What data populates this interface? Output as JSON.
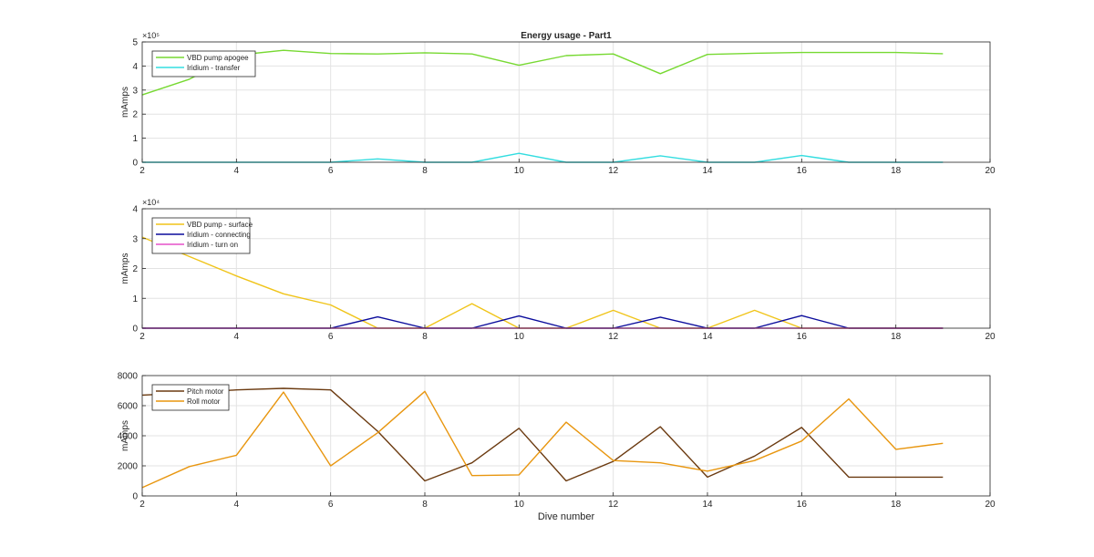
{
  "figure": {
    "title": "Energy usage - Part1",
    "xlabel": "Dive number"
  },
  "chart_data": [
    {
      "type": "line",
      "title": "Energy usage - Part1",
      "xlabel": "",
      "ylabel": "mAmps",
      "xlim": [
        2,
        20
      ],
      "ylim": [
        0,
        500000
      ],
      "x_ticks": [
        "2",
        "4",
        "6",
        "8",
        "10",
        "12",
        "14",
        "16",
        "18",
        "20"
      ],
      "y_ticks": [
        "0",
        "1",
        "2",
        "3",
        "4",
        "5"
      ],
      "y_exponent": "×10⁵",
      "grid": true,
      "legend_position": "top-left",
      "x": [
        2,
        3,
        4,
        5,
        6,
        7,
        8,
        9,
        10,
        11,
        12,
        13,
        14,
        15,
        16,
        17,
        18,
        19
      ],
      "series": [
        {
          "name": "VBD pump apogee",
          "color": "#77d932",
          "values": [
            280000,
            345000,
            445000,
            465000,
            452000,
            450000,
            455000,
            450000,
            403000,
            443000,
            450000,
            368000,
            448000,
            453000,
            456000,
            456000,
            456000,
            451000
          ]
        },
        {
          "name": "Iridium - transfer",
          "color": "#33dde0",
          "values": [
            0,
            0,
            0,
            0,
            0,
            14000,
            0,
            0,
            37000,
            0,
            0,
            27000,
            0,
            0,
            28000,
            0,
            0,
            0
          ]
        }
      ]
    },
    {
      "type": "line",
      "title": "",
      "xlabel": "",
      "ylabel": "mAmps",
      "xlim": [
        2,
        20
      ],
      "ylim": [
        0,
        40000
      ],
      "x_ticks": [
        "2",
        "4",
        "6",
        "8",
        "10",
        "12",
        "14",
        "16",
        "18",
        "20"
      ],
      "y_ticks": [
        "0",
        "1",
        "2",
        "3",
        "4"
      ],
      "y_exponent": "×10⁴",
      "grid": true,
      "legend_position": "top-left",
      "x": [
        2,
        3,
        4,
        5,
        6,
        7,
        8,
        9,
        10,
        11,
        12,
        13,
        14,
        15,
        16,
        17,
        18,
        19
      ],
      "series": [
        {
          "name": "VBD pump - surface",
          "color": "#f0c419",
          "values": [
            30500,
            24000,
            17500,
            11500,
            7800,
            0,
            0,
            8200,
            0,
            0,
            6000,
            0,
            0,
            6000,
            0,
            0,
            0,
            0
          ]
        },
        {
          "name": "Iridium - connecting",
          "color": "#0b0c9c",
          "values": [
            0,
            0,
            0,
            0,
            0,
            3800,
            0,
            0,
            4100,
            0,
            0,
            3700,
            0,
            0,
            4200,
            0,
            0,
            0
          ]
        },
        {
          "name": "Iridium - turn on",
          "color": "#e651c8",
          "values": [
            0,
            0,
            0,
            0,
            0,
            0,
            0,
            0,
            0,
            0,
            0,
            0,
            0,
            0,
            0,
            0,
            0,
            0
          ]
        }
      ]
    },
    {
      "type": "line",
      "title": "",
      "xlabel": "Dive number",
      "ylabel": "mAmps",
      "xlim": [
        2,
        20
      ],
      "ylim": [
        0,
        8000
      ],
      "x_ticks": [
        "2",
        "4",
        "6",
        "8",
        "10",
        "12",
        "14",
        "16",
        "18",
        "20"
      ],
      "y_ticks": [
        "0",
        "2000",
        "4000",
        "6000",
        "8000"
      ],
      "y_exponent": "",
      "grid": true,
      "legend_position": "top-left",
      "x": [
        2,
        3,
        4,
        5,
        6,
        7,
        8,
        9,
        10,
        11,
        12,
        13,
        14,
        15,
        16,
        17,
        18,
        19
      ],
      "series": [
        {
          "name": "Pitch motor",
          "color": "#6b3a10",
          "values": [
            6700,
            6850,
            7050,
            7150,
            7050,
            4300,
            1000,
            2200,
            4500,
            1000,
            2300,
            4600,
            1250,
            2650,
            4550,
            1250,
            1250,
            1250
          ]
        },
        {
          "name": "Roll motor",
          "color": "#e8960f",
          "values": [
            550,
            1950,
            2700,
            6900,
            2000,
            4200,
            6950,
            1350,
            1400,
            4900,
            2350,
            2200,
            1650,
            2350,
            3650,
            6450,
            3100,
            3500
          ]
        }
      ]
    }
  ]
}
